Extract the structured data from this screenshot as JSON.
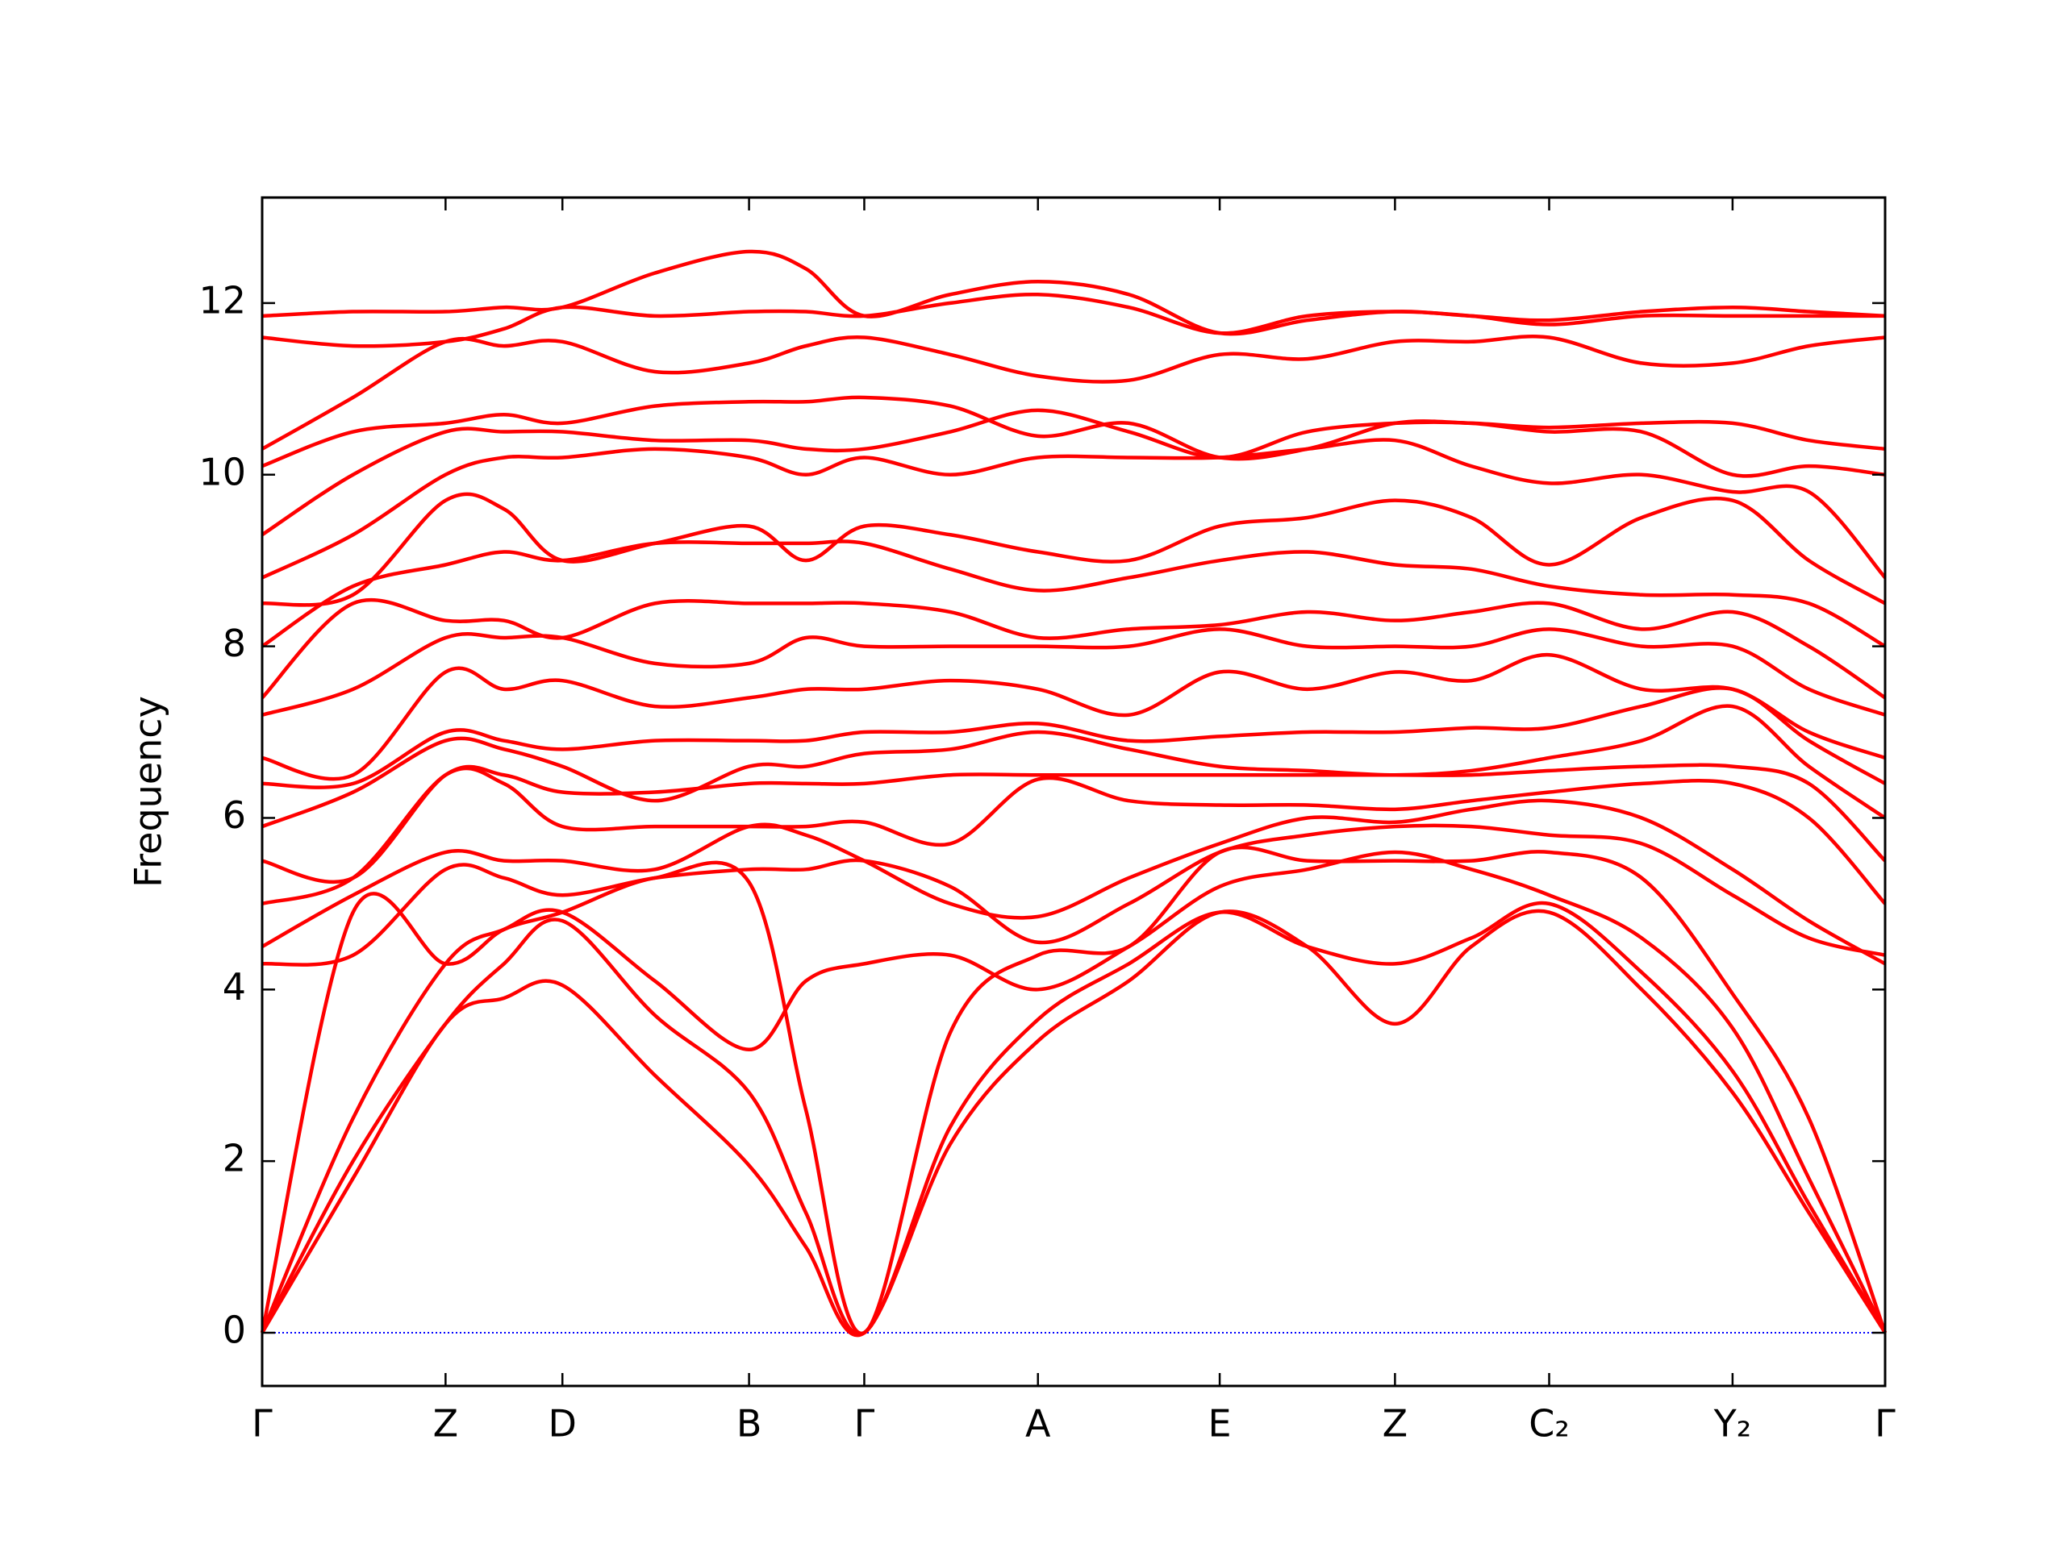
{
  "chart_data": {
    "type": "line",
    "ylabel": "Frequency",
    "x": [
      0,
      0.056,
      0.113,
      0.149,
      0.185,
      0.242,
      0.3,
      0.335,
      0.371,
      0.424,
      0.478,
      0.534,
      0.59,
      0.644,
      0.698,
      0.745,
      0.793,
      0.85,
      0.906,
      0.953,
      1
    ],
    "xlim": [
      0,
      1
    ],
    "xticks": [
      {
        "value": 0,
        "label": "Γ"
      },
      {
        "value": 0.113,
        "label": "Z"
      },
      {
        "value": 0.185,
        "label": "D"
      },
      {
        "value": 0.3,
        "label": "B"
      },
      {
        "value": 0.371,
        "label": "Γ"
      },
      {
        "value": 0.478,
        "label": "A"
      },
      {
        "value": 0.59,
        "label": "E"
      },
      {
        "value": 0.698,
        "label": "Z"
      },
      {
        "value": 0.793,
        "label": "C₂"
      },
      {
        "value": 0.906,
        "label": "Y₂"
      },
      {
        "value": 1,
        "label": "Γ"
      }
    ],
    "ylim": [
      -0.62,
      13.23
    ],
    "yticks": [
      0,
      2,
      4,
      6,
      8,
      10,
      12
    ],
    "grid": false,
    "hline": {
      "value": 0,
      "color": "#0000ff"
    },
    "series": [
      {
        "color": "#ff0000",
        "values": [
          0,
          1.8,
          3.6,
          3.9,
          4.05,
          3.0,
          1.95,
          1.0,
          0,
          2.2,
          3.4,
          4.1,
          4.9,
          4.5,
          3.6,
          4.5,
          4.9,
          4.0,
          2.8,
          1.4,
          0
        ]
      },
      {
        "color": "#ff0000",
        "values": [
          0,
          2.0,
          3.6,
          4.3,
          4.8,
          3.7,
          2.8,
          1.4,
          0,
          2.4,
          3.65,
          4.3,
          4.9,
          4.5,
          4.3,
          4.6,
          5.0,
          4.2,
          3.05,
          1.5,
          0
        ]
      },
      {
        "color": "#ff0000",
        "values": [
          0,
          2.5,
          4.3,
          4.7,
          4.9,
          4.1,
          3.3,
          4.1,
          4.3,
          4.4,
          4.0,
          4.5,
          5.2,
          5.4,
          5.6,
          5.4,
          5.1,
          4.6,
          3.55,
          1.8,
          0
        ]
      },
      {
        "color": "#ff0000",
        "values": [
          0,
          4.9,
          4.3,
          4.7,
          4.9,
          5.3,
          5.25,
          2.6,
          0,
          3.5,
          4.4,
          4.5,
          5.6,
          5.5,
          5.5,
          5.5,
          5.6,
          5.3,
          3.95,
          2.5,
          0
        ]
      },
      {
        "color": "#ff0000",
        "values": [
          4.3,
          4.4,
          5.4,
          5.3,
          5.1,
          5.3,
          5.4,
          5.4,
          5.5,
          5.2,
          4.55,
          5.0,
          5.6,
          5.8,
          5.9,
          5.9,
          5.8,
          5.7,
          5.1,
          4.6,
          4.4
        ]
      },
      {
        "color": "#ff0000",
        "values": [
          4.5,
          5.1,
          5.6,
          5.5,
          5.5,
          5.4,
          5.9,
          5.8,
          5.5,
          5.0,
          4.85,
          5.3,
          5.7,
          6.0,
          5.95,
          6.1,
          6.2,
          6.0,
          5.4,
          4.8,
          4.3
        ]
      },
      {
        "color": "#ff0000",
        "values": [
          5.0,
          5.3,
          6.5,
          6.4,
          5.9,
          5.9,
          5.9,
          5.9,
          5.95,
          5.7,
          6.45,
          6.2,
          6.15,
          6.15,
          6.1,
          6.2,
          6.3,
          6.4,
          6.4,
          6.0,
          5.0
        ]
      },
      {
        "color": "#ff0000",
        "values": [
          5.5,
          5.3,
          6.5,
          6.5,
          6.3,
          6.3,
          6.4,
          6.4,
          6.4,
          6.5,
          6.5,
          6.5,
          6.5,
          6.5,
          6.5,
          6.5,
          6.55,
          6.6,
          6.6,
          6.4,
          5.5
        ]
      },
      {
        "color": "#ff0000",
        "values": [
          5.9,
          6.3,
          6.9,
          6.8,
          6.6,
          6.2,
          6.6,
          6.6,
          6.75,
          6.8,
          7.0,
          6.8,
          6.6,
          6.55,
          6.5,
          6.55,
          6.7,
          6.9,
          7.3,
          6.6,
          6.0
        ]
      },
      {
        "color": "#ff0000",
        "values": [
          6.4,
          6.4,
          7.0,
          6.9,
          6.8,
          6.9,
          6.9,
          6.9,
          7.0,
          7.0,
          7.1,
          6.9,
          6.95,
          7.0,
          7.0,
          7.05,
          7.05,
          7.3,
          7.5,
          6.9,
          6.4
        ]
      },
      {
        "color": "#ff0000",
        "values": [
          6.7,
          6.5,
          7.7,
          7.5,
          7.6,
          7.3,
          7.4,
          7.5,
          7.5,
          7.6,
          7.5,
          7.2,
          7.7,
          7.5,
          7.7,
          7.6,
          7.9,
          7.5,
          7.5,
          7.0,
          6.7
        ]
      },
      {
        "color": "#ff0000",
        "values": [
          7.2,
          7.5,
          8.1,
          8.1,
          8.1,
          7.8,
          7.8,
          8.1,
          8.0,
          8.0,
          8.0,
          8.0,
          8.2,
          8.0,
          8.0,
          8.0,
          8.2,
          8.0,
          8.0,
          7.5,
          7.2
        ]
      },
      {
        "color": "#ff0000",
        "values": [
          7.4,
          8.5,
          8.3,
          8.3,
          8.1,
          8.5,
          8.5,
          8.5,
          8.5,
          8.4,
          8.1,
          8.2,
          8.25,
          8.4,
          8.3,
          8.4,
          8.5,
          8.2,
          8.4,
          8.0,
          7.4
        ]
      },
      {
        "color": "#ff0000",
        "values": [
          8.0,
          8.7,
          8.95,
          9.1,
          9.0,
          9.2,
          9.2,
          9.2,
          9.2,
          8.9,
          8.65,
          8.8,
          9.0,
          9.1,
          8.95,
          8.9,
          8.7,
          8.6,
          8.6,
          8.5,
          8.0
        ]
      },
      {
        "color": "#ff0000",
        "values": [
          8.5,
          8.6,
          9.7,
          9.6,
          9.0,
          9.2,
          9.4,
          9.0,
          9.4,
          9.3,
          9.1,
          9.0,
          9.4,
          9.5,
          9.7,
          9.5,
          8.95,
          9.5,
          9.7,
          9.0,
          8.5
        ]
      },
      {
        "color": "#ff0000",
        "values": [
          8.8,
          9.3,
          10.0,
          10.2,
          10.2,
          10.3,
          10.2,
          10.0,
          10.2,
          10.0,
          10.2,
          10.2,
          10.2,
          10.3,
          10.4,
          10.1,
          9.9,
          10.0,
          9.8,
          9.8,
          8.8
        ]
      },
      {
        "color": "#ff0000",
        "values": [
          9.3,
          10.0,
          10.5,
          10.5,
          10.5,
          10.4,
          10.4,
          10.3,
          10.3,
          10.5,
          10.75,
          10.5,
          10.2,
          10.5,
          10.6,
          10.6,
          10.5,
          10.5,
          10.0,
          10.1,
          10.0
        ]
      },
      {
        "color": "#ff0000",
        "values": [
          10.1,
          10.5,
          10.6,
          10.7,
          10.6,
          10.8,
          10.85,
          10.85,
          10.9,
          10.8,
          10.45,
          10.6,
          10.2,
          10.3,
          10.6,
          10.6,
          10.55,
          10.6,
          10.6,
          10.4,
          10.3
        ]
      },
      {
        "color": "#ff0000",
        "values": [
          10.3,
          10.9,
          11.55,
          11.5,
          11.55,
          11.2,
          11.3,
          11.5,
          11.6,
          11.4,
          11.15,
          11.1,
          11.4,
          11.35,
          11.55,
          11.55,
          11.6,
          11.3,
          11.3,
          11.5,
          11.6
        ]
      },
      {
        "color": "#ff0000",
        "values": [
          11.6,
          11.5,
          11.55,
          11.7,
          11.95,
          11.85,
          11.9,
          11.9,
          11.85,
          12.0,
          12.1,
          11.95,
          11.65,
          11.85,
          11.9,
          11.85,
          11.75,
          11.85,
          11.85,
          11.85,
          11.85
        ]
      },
      {
        "color": "#ff0000",
        "values": [
          11.85,
          11.9,
          11.9,
          11.95,
          11.95,
          12.35,
          12.6,
          12.4,
          11.85,
          12.1,
          12.25,
          12.1,
          11.65,
          11.8,
          11.9,
          11.85,
          11.8,
          11.9,
          11.95,
          11.9,
          11.85
        ]
      }
    ]
  }
}
